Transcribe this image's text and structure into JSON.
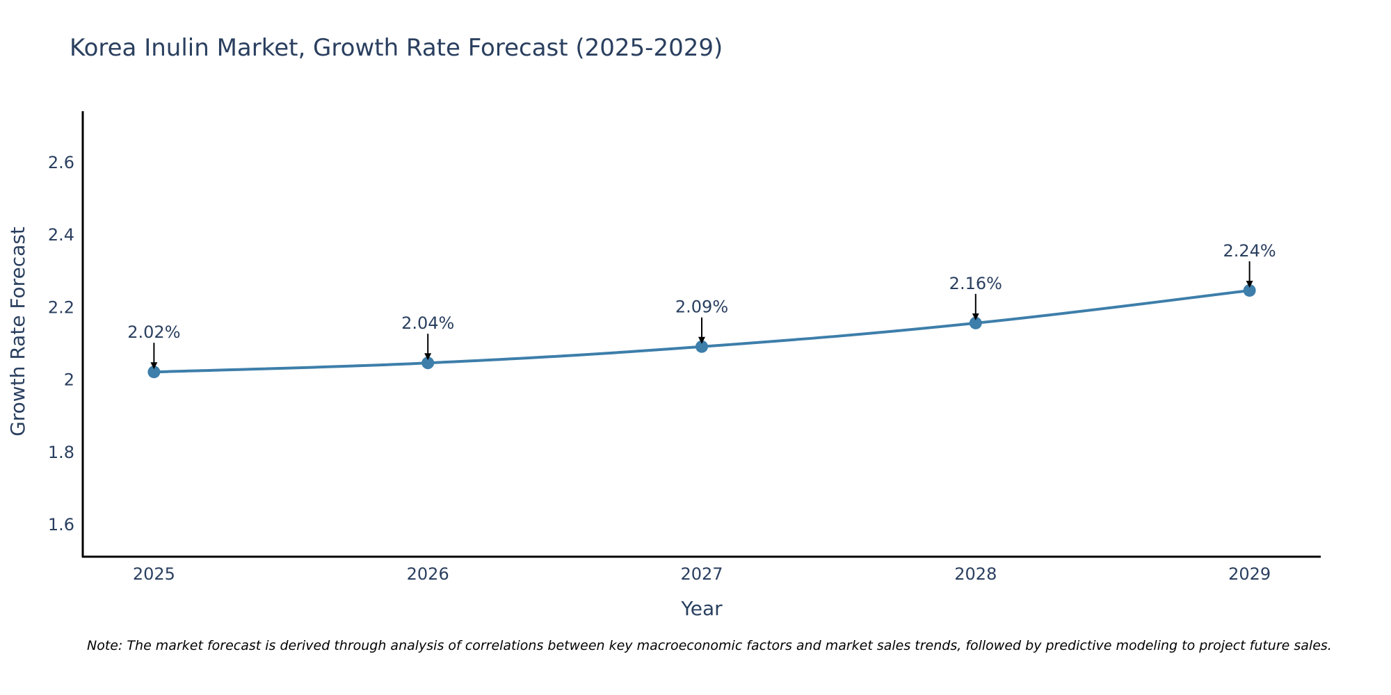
{
  "chart_data": {
    "type": "line",
    "title": "Korea Inulin Market, Growth Rate Forecast (2025-2029)",
    "xlabel": "Year",
    "ylabel": "Growth Rate Forecast",
    "categories": [
      "2025",
      "2026",
      "2027",
      "2028",
      "2029"
    ],
    "x": [
      2025,
      2026,
      2027,
      2028,
      2029
    ],
    "values": [
      2.02,
      2.045,
      2.09,
      2.155,
      2.245
    ],
    "annotations": [
      "2.02%",
      "2.04%",
      "2.09%",
      "2.16%",
      "2.24%"
    ],
    "ylim": [
      1.51,
      2.74
    ],
    "xlim": [
      2024.74,
      2029.26
    ],
    "yticks": [
      1.6,
      1.8,
      2.0,
      2.2,
      2.4,
      2.6
    ],
    "ytick_labels": [
      "1.6",
      "1.8",
      "2",
      "2.2",
      "2.4",
      "2.6"
    ],
    "grid": false,
    "line_color": "#3d7eaa",
    "axis_color": "#000000",
    "text_color": "#2a3f5f"
  },
  "note": "Note: The market forecast is derived through analysis of correlations between key macroeconomic factors and market sales trends, followed by predictive modeling to project future sales."
}
